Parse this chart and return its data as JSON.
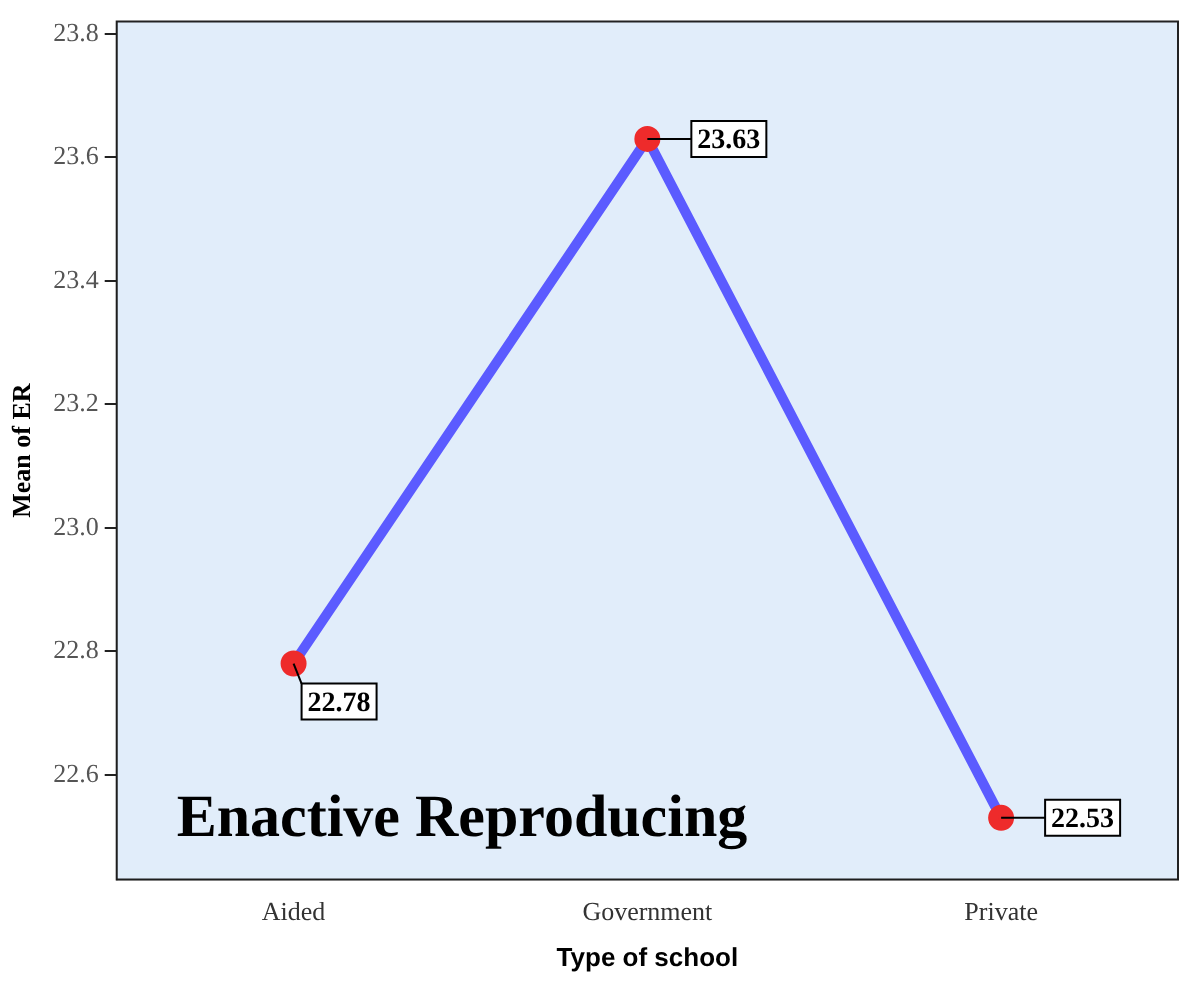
{
  "chart_data": {
    "type": "line",
    "xlabel": "Type of school",
    "ylabel": "Mean of ER",
    "categories": [
      "Aided",
      "Government",
      "Private"
    ],
    "series": [
      {
        "color": "#5b5bff",
        "values": [
          22.78,
          23.63,
          22.53
        ]
      }
    ],
    "ylim": [
      22.43,
      23.82
    ],
    "yticks": [
      {
        "value": 22.6,
        "label": "22.6"
      },
      {
        "value": 22.8,
        "label": "22.8"
      },
      {
        "value": 23,
        "label": "23.0"
      },
      {
        "value": 23.2,
        "label": "23.2"
      },
      {
        "value": 23.4,
        "label": "23.4"
      },
      {
        "value": 23.6,
        "label": "23.6"
      },
      {
        "value": 23.8,
        "label": "23.8"
      }
    ],
    "grid": false,
    "legend": false,
    "marker": "circle",
    "line_style": "solid",
    "data_labels": true,
    "annotations": [
      "Enactive Reproducing"
    ]
  }
}
